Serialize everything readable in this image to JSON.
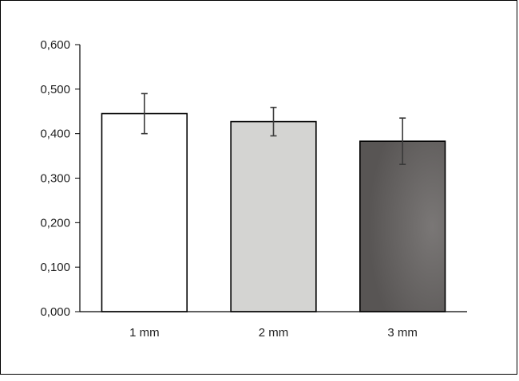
{
  "chart_data": {
    "type": "bar",
    "title": "",
    "xlabel": "",
    "ylabel": "",
    "categories": [
      "1 mm",
      "2 mm",
      "3 mm"
    ],
    "values": [
      0.445,
      0.427,
      0.383
    ],
    "error": [
      0.045,
      0.032,
      0.052
    ],
    "ylim": [
      0,
      0.6
    ],
    "yticks": [
      "0,000",
      "0,100",
      "0,200",
      "0,300",
      "0,400",
      "0,500",
      "0,600"
    ],
    "bar_colors": [
      "#ffffff",
      "#d4d4d2",
      "#5e5b5a"
    ],
    "grid": false,
    "legend": "none"
  }
}
